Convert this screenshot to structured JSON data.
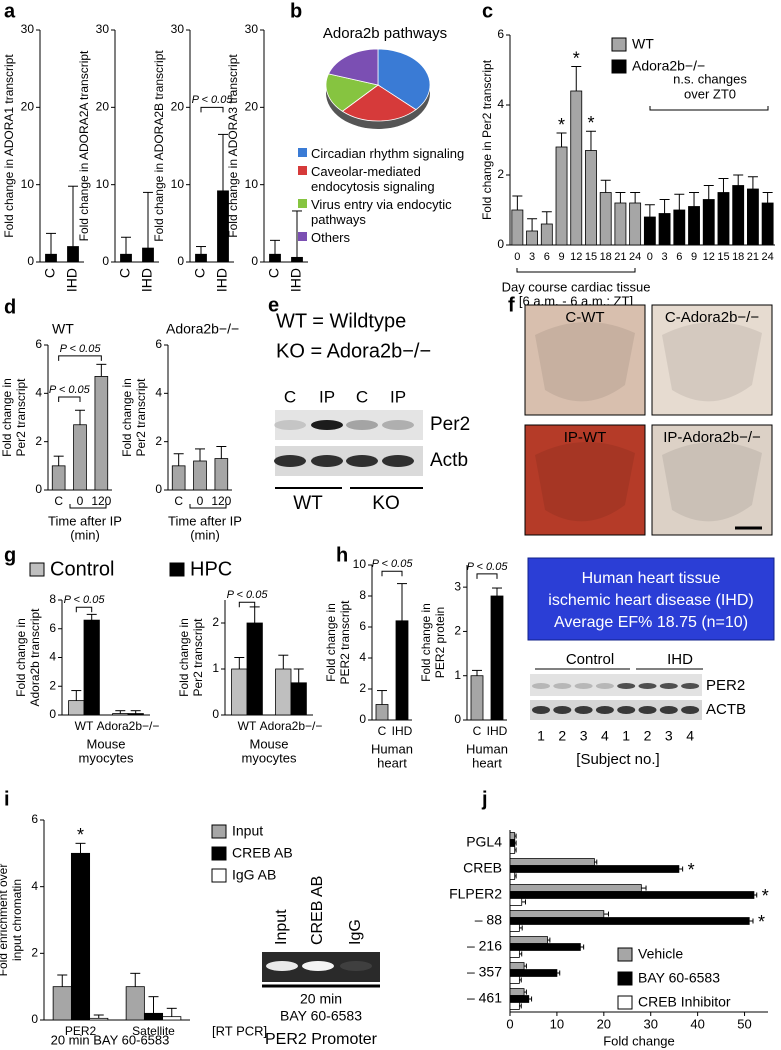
{
  "panel_labels": [
    "a",
    "b",
    "c",
    "d",
    "e",
    "f",
    "g",
    "h",
    "i",
    "j"
  ],
  "chart_data": [
    {
      "type": "bar",
      "ylabel": "Fold change in ADORA1 transcript",
      "categories": [
        "C",
        "IHD"
      ],
      "series": [
        {
          "color": "#000000",
          "values": [
            1,
            2
          ],
          "errors": [
            2.7,
            7.8
          ]
        }
      ],
      "ylim": [
        0,
        30
      ],
      "yticks": [
        0,
        10,
        20,
        30
      ]
    },
    {
      "type": "bar",
      "ylabel": "Fold change in ADORA2A transcript",
      "categories": [
        "C",
        "IHD"
      ],
      "series": [
        {
          "color": "#000000",
          "values": [
            1,
            1.8
          ],
          "errors": [
            2.2,
            7.2
          ]
        }
      ],
      "ylim": [
        0,
        30
      ],
      "yticks": [
        0,
        10,
        20,
        30
      ]
    },
    {
      "type": "bar",
      "ylabel": "Fold change in ADORA2B transcript",
      "categories": [
        "C",
        "IHD"
      ],
      "series": [
        {
          "color": "#000000",
          "values": [
            1,
            9.2
          ],
          "errors": [
            1,
            7.3
          ]
        }
      ],
      "ylim": [
        0,
        30
      ],
      "yticks": [
        0,
        10,
        20,
        30
      ],
      "annotations": [
        "P < 0.05"
      ]
    },
    {
      "type": "bar",
      "ylabel": "Fold change in ADORA3 transcript",
      "categories": [
        "C",
        "IHD"
      ],
      "series": [
        {
          "color": "#000000",
          "values": [
            1,
            0.6
          ],
          "errors": [
            1.8,
            6
          ]
        }
      ],
      "ylim": [
        0,
        30
      ],
      "yticks": [
        0,
        10,
        20,
        30
      ]
    },
    {
      "type": "pie",
      "title": "Adora2b pathways",
      "categories": [
        "Circadian rhythm signaling",
        "Caveolar-mediated endocytosis signaling",
        "Virus entry via endocytic pathways",
        "Others"
      ],
      "values": [
        37,
        25,
        18,
        20
      ],
      "colors": [
        "#3a7bd5",
        "#d63a3a",
        "#86c440",
        "#7b4fb3"
      ]
    },
    {
      "type": "bar",
      "ylabel": "Fold change in Per2 transcript",
      "categories": [
        "0",
        "3",
        "6",
        "9",
        "12",
        "15",
        "18",
        "21",
        "24",
        "0",
        "3",
        "6",
        "9",
        "12",
        "15",
        "18",
        "21",
        "24"
      ],
      "series": [
        {
          "name": "WT",
          "color": "#a6a6a6",
          "values": [
            1.0,
            0.4,
            0.6,
            2.8,
            4.4,
            2.7,
            1.5,
            1.2,
            1.2,
            null,
            null,
            null,
            null,
            null,
            null,
            null,
            null,
            null
          ],
          "errors": [
            0.4,
            0.35,
            0.35,
            0.4,
            0.7,
            0.55,
            0.35,
            0.3,
            0.3,
            null,
            null,
            null,
            null,
            null,
            null,
            null,
            null,
            null
          ]
        },
        {
          "name": "Adora2b−/−",
          "color": "#000000",
          "values": [
            null,
            null,
            null,
            null,
            null,
            null,
            null,
            null,
            null,
            0.8,
            0.9,
            1.0,
            1.1,
            1.3,
            1.5,
            1.7,
            1.6,
            1.2
          ],
          "errors": [
            null,
            null,
            null,
            null,
            null,
            null,
            null,
            null,
            null,
            0.35,
            0.4,
            0.45,
            0.4,
            0.4,
            0.4,
            0.3,
            0.35,
            0.3
          ]
        }
      ],
      "ylim": [
        0,
        6
      ],
      "yticks": [
        0,
        2,
        4,
        6
      ],
      "xlabel": [
        "Day course cardiac tissue",
        "[6 a.m. - 6 a.m.; ZT]"
      ],
      "annotations": [
        "*",
        "*",
        "*",
        [
          "n.s. changes",
          "over ZT0"
        ]
      ]
    },
    {
      "type": "bar",
      "title": "WT",
      "ylabel": [
        "Fold change in",
        "Per2 transcript"
      ],
      "categories": [
        "C",
        "0",
        "120"
      ],
      "series": [
        {
          "color": "#a6a6a6",
          "values": [
            1,
            2.7,
            4.7
          ],
          "errors": [
            0.4,
            0.6,
            0.5
          ]
        }
      ],
      "ylim": [
        0,
        6
      ],
      "yticks": [
        0,
        2,
        4,
        6
      ],
      "xlabel": [
        "Time after IP",
        "(min)"
      ],
      "annotations": [
        "P < 0.05",
        "P < 0.05"
      ]
    },
    {
      "type": "bar",
      "title": "Adora2b−/−",
      "ylabel": [
        "Fold change in",
        "Per2 transcript"
      ],
      "categories": [
        "C",
        "0",
        "120"
      ],
      "series": [
        {
          "color": "#a6a6a6",
          "values": [
            1,
            1.2,
            1.3
          ],
          "errors": [
            0.5,
            0.5,
            0.5
          ]
        }
      ],
      "ylim": [
        0,
        6
      ],
      "yticks": [
        0,
        2,
        4,
        6
      ],
      "xlabel": [
        "Time after IP",
        "(min)"
      ]
    },
    {
      "type": "bar",
      "ylabel": [
        "Fold change in",
        "Adora2b transcript"
      ],
      "categories": [
        "WT",
        "Adora2b−/−"
      ],
      "series": [
        {
          "name": "Control",
          "color": "#bfbfbf",
          "values": [
            1,
            0.1
          ],
          "errors": [
            0.7,
            0.2
          ]
        },
        {
          "name": "HPC",
          "color": "#000000",
          "values": [
            6.6,
            0.1
          ],
          "errors": [
            0.4,
            0.2
          ]
        }
      ],
      "ylim": [
        0,
        8
      ],
      "yticks": [
        0,
        2,
        4,
        6,
        8
      ],
      "xlabel": [
        "Mouse",
        "myocytes"
      ],
      "annotations": [
        "P < 0.05"
      ]
    },
    {
      "type": "bar",
      "ylabel": [
        "Fold change in",
        "Per2 transcript"
      ],
      "categories": [
        "WT",
        "Adora2b−/−"
      ],
      "series": [
        {
          "color": "#bfbfbf",
          "values": [
            1,
            1
          ],
          "errors": [
            0.25,
            0.3
          ]
        },
        {
          "color": "#000000",
          "values": [
            2,
            0.7
          ],
          "errors": [
            0.35,
            0.3
          ]
        }
      ],
      "ylim": [
        0,
        2.5
      ],
      "yticks": [
        0,
        1,
        2
      ],
      "xlabel": [
        "Mouse",
        "myocytes"
      ],
      "annotations": [
        "P < 0.05"
      ]
    },
    {
      "type": "bar",
      "ylabel": [
        "Fold change in",
        "PER2 transcript"
      ],
      "categories": [
        "C",
        "IHD"
      ],
      "series": [
        {
          "colors": [
            "#a6a6a6",
            "#000000"
          ],
          "values": [
            1,
            6.4
          ],
          "errors": [
            0.9,
            2.4
          ]
        }
      ],
      "ylim": [
        0,
        10
      ],
      "yticks": [
        0,
        2,
        4,
        6,
        8,
        10
      ],
      "xlabel": [
        "Human",
        "heart"
      ],
      "annotations": [
        "P < 0.05"
      ]
    },
    {
      "type": "bar",
      "ylabel": [
        "Fold change in",
        "PER2 protein"
      ],
      "categories": [
        "C",
        "IHD"
      ],
      "series": [
        {
          "colors": [
            "#a6a6a6",
            "#000000"
          ],
          "values": [
            1,
            2.8
          ],
          "errors": [
            0.12,
            0.18
          ]
        }
      ],
      "ylim": [
        0,
        3.5
      ],
      "yticks": [
        0,
        1,
        2,
        3
      ],
      "xlabel": [
        "Human",
        "heart"
      ],
      "annotations": [
        "P < 0.05"
      ]
    },
    {
      "type": "bar",
      "ylabel": [
        "Fold enrichment over",
        "input chromatin"
      ],
      "categories": [
        "PER2",
        "Satellite"
      ],
      "series": [
        {
          "name": "Input",
          "color": "#a6a6a6",
          "values": [
            1,
            1
          ],
          "errors": [
            0.35,
            0.4
          ]
        },
        {
          "name": "CREB AB",
          "color": "#000000",
          "values": [
            5,
            0.2
          ],
          "errors": [
            0.3,
            0.5
          ]
        },
        {
          "name": "IgG AB",
          "color": "#ffffff",
          "values": [
            0.05,
            0.1
          ],
          "errors": [
            0.1,
            0.25
          ]
        }
      ],
      "ylim": [
        0,
        6
      ],
      "yticks": [
        0,
        2,
        4,
        6
      ],
      "xlabel": "20 min BAY 60-6583",
      "annotations": [
        "*",
        "[RT PCR]"
      ]
    },
    {
      "type": "bar",
      "orientation": "horizontal",
      "categories": [
        "PGL4",
        "CREB",
        "FLPER2",
        "– 88",
        "– 216",
        "– 357",
        "– 461"
      ],
      "series": [
        {
          "name": "Vehicle",
          "color": "#a6a6a6",
          "values": [
            1,
            18,
            28,
            20,
            8,
            3,
            3
          ],
          "errors": [
            0.3,
            0.5,
            1,
            1,
            0.5,
            0.5,
            0.5
          ]
        },
        {
          "name": "BAY 60-6583",
          "color": "#000000",
          "values": [
            1,
            36,
            52,
            51,
            15,
            10,
            4
          ],
          "errors": [
            0.3,
            0.8,
            0.6,
            0.8,
            0.7,
            0.6,
            0.6
          ]
        },
        {
          "name": "CREB Inhibitor",
          "color": "#ffffff",
          "values": [
            1,
            1,
            2.5,
            2,
            2,
            2,
            2
          ],
          "errors": [
            0.3,
            0.3,
            0.8,
            0.6,
            0.5,
            0.4,
            0.4
          ]
        }
      ],
      "xlim": [
        0,
        55
      ],
      "xticks": [
        0,
        10,
        20,
        30,
        40,
        50
      ],
      "xlabel": "Fold change",
      "annotations": [
        "*",
        "*",
        "*"
      ]
    }
  ],
  "blot_e": {
    "legend": [
      "WT = Wildtype",
      "KO = Adora2b−/−"
    ],
    "lanes": [
      "C",
      "IP",
      "C",
      "IP"
    ],
    "rows": [
      "Per2",
      "Actb"
    ],
    "groups": [
      "WT",
      "KO"
    ]
  },
  "images_f": {
    "labels": [
      "C-WT",
      "C-Adora2b−/−",
      "IP-WT",
      "IP-Adora2b−/−"
    ]
  },
  "box_h": [
    "Human heart tissue",
    "ischemic heart disease (IHD)",
    "Average EF%  18.75 (n=10)"
  ],
  "blot_h": {
    "groups": [
      "Control",
      "IHD"
    ],
    "rows": [
      "PER2",
      "ACTB"
    ],
    "lanes": [
      "1",
      "2",
      "3",
      "4",
      "1",
      "2",
      "3",
      "4"
    ],
    "xlabel": "[Subject no.]"
  },
  "gel_i": {
    "lanes": [
      "Input",
      "CREB AB",
      "IgG"
    ],
    "caption": [
      "20 min",
      "BAY 60-6583"
    ],
    "title": "PER2 Promoter"
  }
}
